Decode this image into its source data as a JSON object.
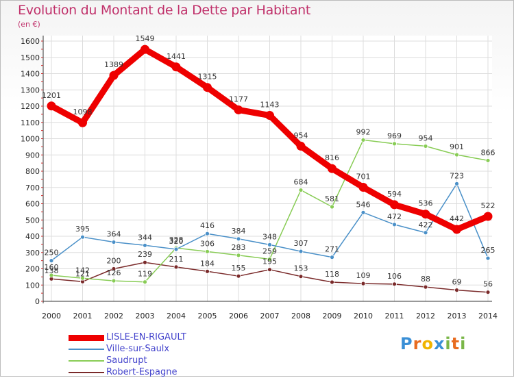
{
  "header": {
    "title": "Evolution du Montant de la Dette par Habitant",
    "unit": "(en €)"
  },
  "logo": {
    "text": "Proxiti",
    "letters": [
      "P",
      "r",
      "o",
      "x",
      "i",
      "t",
      "i"
    ],
    "colors": [
      "#3a8fd6",
      "#e86b1f",
      "#f0b400",
      "#3a8fd6",
      "#7ab648",
      "#e86b1f",
      "#7ab648"
    ]
  },
  "chart_data": {
    "type": "line",
    "title": "Evolution du Montant de la Dette par Habitant",
    "ylabel": "(en €)",
    "xlabel": "",
    "x": [
      "2000",
      "2001",
      "2002",
      "2003",
      "2004",
      "2005",
      "2006",
      "2007",
      "2008",
      "2009",
      "2010",
      "2011",
      "2012",
      "2013",
      "2014"
    ],
    "ylim": [
      0,
      1600
    ],
    "yticks": [
      0,
      100,
      200,
      300,
      400,
      500,
      600,
      700,
      800,
      900,
      1000,
      1100,
      1200,
      1300,
      1400,
      1500,
      1600
    ],
    "grid": true,
    "legend": "bottom-left",
    "series": [
      {
        "name": "LISLE-EN-RIGAULT",
        "color": "#ee0000",
        "values": [
          1201,
          1098,
          1389,
          1549,
          1441,
          1315,
          1177,
          1143,
          954,
          816,
          701,
          594,
          536,
          442,
          522
        ],
        "labels": [
          "1201",
          "1098",
          "1389",
          "1549",
          "1441",
          "1315",
          "1177",
          "1143",
          "954",
          "816",
          "701",
          "594",
          "536",
          "442",
          "522"
        ]
      },
      {
        "name": "Ville-sur-Saulx",
        "color": "#4a90c8",
        "values": [
          250,
          395,
          364,
          344,
          320,
          416,
          384,
          348,
          307,
          271,
          546,
          472,
          422,
          723,
          265
        ],
        "labels": [
          "250",
          "395",
          "364",
          "344",
          "320",
          "416",
          "384",
          "348",
          "307",
          "271",
          "546",
          "472",
          "422",
          "723",
          "265"
        ]
      },
      {
        "name": "Saudrupt",
        "color": "#88cc55",
        "values": [
          160,
          142,
          126,
          119,
          328,
          306,
          283,
          259,
          684,
          581,
          992,
          969,
          954,
          901,
          866
        ],
        "labels": [
          "160",
          "142",
          "126",
          "119",
          "328",
          "306",
          "283",
          "259",
          "684",
          "581",
          "992",
          "969",
          "954",
          "901",
          "866"
        ]
      },
      {
        "name": "Robert-Espagne",
        "color": "#7a2a2a",
        "values": [
          138,
          121,
          200,
          239,
          211,
          184,
          155,
          195,
          153,
          118,
          109,
          106,
          88,
          69,
          56
        ],
        "labels": [
          "138",
          "121",
          "200",
          "239",
          "211",
          "184",
          "155",
          "195",
          "153",
          "118",
          "109",
          "106",
          "88",
          "69",
          "56"
        ]
      }
    ]
  }
}
